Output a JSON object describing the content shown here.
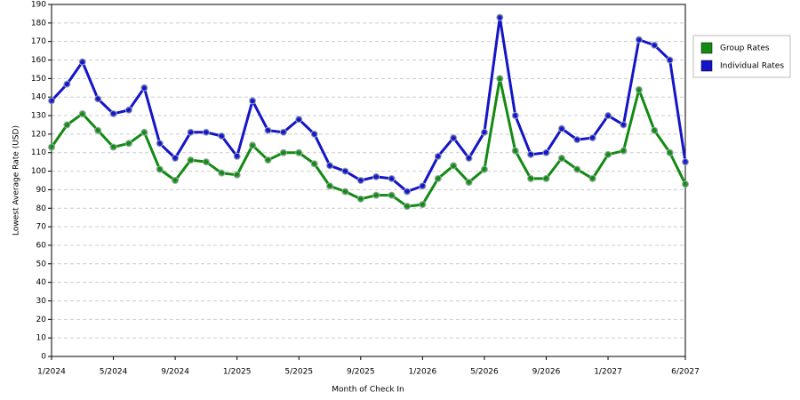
{
  "chart_data": {
    "type": "line",
    "x_label": "Month of Check In",
    "y_label": "Lowest Average Rate (USD)",
    "categories": [
      "1/2024",
      null,
      null,
      null,
      "5/2024",
      null,
      null,
      null,
      "9/2024",
      null,
      null,
      null,
      "1/2025",
      null,
      null,
      null,
      "5/2025",
      null,
      null,
      null,
      "9/2025",
      null,
      null,
      null,
      "1/2026",
      null,
      null,
      null,
      "5/2026",
      null,
      null,
      null,
      "9/2026",
      null,
      null,
      null,
      "1/2027",
      null,
      null,
      null,
      null,
      "6/2027"
    ],
    "series": [
      {
        "name": "Group Rates",
        "color": "#138a13",
        "values": [
          113,
          125,
          131,
          122,
          113,
          115,
          121,
          101,
          95,
          106,
          105,
          99,
          98,
          114,
          106,
          110,
          110,
          104,
          92,
          89,
          85,
          87,
          87,
          81,
          82,
          96,
          103,
          94,
          101,
          150,
          111,
          96,
          96,
          107,
          101,
          96,
          109,
          111,
          144,
          122,
          110,
          93
        ]
      },
      {
        "name": "Individual Rates",
        "color": "#1414c8",
        "values": [
          138,
          147,
          159,
          139,
          131,
          133,
          145,
          115,
          107,
          121,
          121,
          119,
          108,
          138,
          122,
          121,
          128,
          120,
          103,
          100,
          95,
          97,
          96,
          89,
          92,
          108,
          118,
          107,
          121,
          183,
          130,
          109,
          110,
          123,
          117,
          118,
          130,
          125,
          171,
          168,
          160,
          105
        ]
      }
    ],
    "ylim": [
      0,
      190
    ],
    "yticks": [
      0,
      10,
      20,
      30,
      40,
      50,
      60,
      70,
      80,
      90,
      100,
      110,
      120,
      130,
      140,
      150,
      160,
      170,
      180,
      190
    ],
    "grid": true,
    "legend": "right"
  }
}
